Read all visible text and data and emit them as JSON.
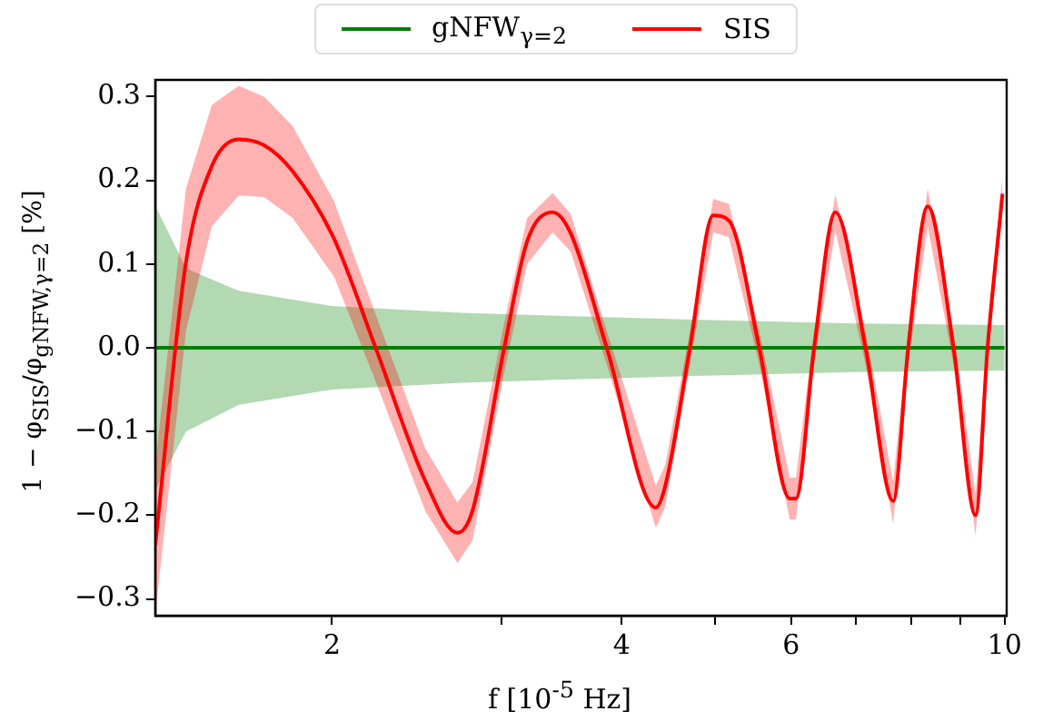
{
  "chart_data": {
    "type": "line",
    "xlabel": "f [10$^{-5}$ Hz]",
    "ylabel": "1 − φ$_{SIS}$/φ$_{gNFW,γ=2}$ [%]",
    "log": "x",
    "xlim": [
      1.31,
      10.05
    ],
    "xticks": [
      2,
      {
        "value": 3,
        "label": null
      },
      4,
      {
        "value": 5,
        "label": null
      },
      6,
      {
        "value": 7,
        "label": null
      },
      {
        "value": 8,
        "label": null
      },
      {
        "value": 9,
        "label": null
      },
      10
    ],
    "ylim": [
      -0.32,
      0.32
    ],
    "yticks": [
      -0.3,
      -0.2,
      -0.1,
      {
        "value": 0,
        "label": "0.0"
      },
      0.1,
      0.2,
      0.3
    ],
    "grid": false,
    "legend": "top",
    "marker": "none",
    "line_style": "solid",
    "series": [
      {
        "name": "gNFW$_{γ=2}$",
        "color": "#008000",
        "x": [
          1.31,
          1.41,
          1.6,
          2,
          2.7,
          3.5,
          5,
          7,
          10
        ],
        "values": [
          0,
          0,
          0,
          0,
          0,
          0,
          0,
          0,
          0
        ],
        "lower": [
          -0.17,
          -0.1,
          -0.068,
          -0.05,
          -0.042,
          -0.038,
          -0.033,
          -0.029,
          -0.027
        ],
        "upper": [
          0.17,
          0.095,
          0.068,
          0.05,
          0.042,
          0.038,
          0.033,
          0.029,
          0.027
        ]
      },
      {
        "name": "SIS",
        "color": "#ff0000",
        "x": [
          1.31,
          1.41,
          1.5,
          1.6,
          1.7,
          1.82,
          2.01,
          2.22,
          2.5,
          2.7,
          2.8,
          3.02,
          3.19,
          3.39,
          3.54,
          3.86,
          4.34,
          4.44,
          4.71,
          4.98,
          5.17,
          5.56,
          5.98,
          6.07,
          6.34,
          6.67,
          7.17,
          7.66,
          7.94,
          8.32,
          8.85,
          9.33,
          9.6,
          9.95
        ],
        "values": [
          -0.236,
          0.102,
          0.217,
          0.249,
          0.242,
          0.211,
          0.13,
          0.0,
          -0.159,
          -0.221,
          -0.194,
          0.0,
          0.127,
          0.162,
          0.137,
          0.0,
          -0.191,
          -0.165,
          0.0,
          0.158,
          0.152,
          0.0,
          -0.18,
          -0.18,
          0.0,
          0.162,
          0.0,
          -0.183,
          0.0,
          0.169,
          0.0,
          -0.2,
          0.0,
          0.184
        ],
        "lower": [
          -0.32,
          0.02,
          0.145,
          0.182,
          0.18,
          0.155,
          0.085,
          -0.04,
          -0.195,
          -0.257,
          -0.23,
          -0.03,
          0.1,
          0.138,
          0.115,
          -0.02,
          -0.215,
          -0.19,
          -0.02,
          0.138,
          0.132,
          -0.02,
          -0.205,
          -0.205,
          -0.02,
          0.14,
          -0.02,
          -0.21,
          -0.02,
          0.145,
          -0.02,
          -0.225,
          -0.02,
          0.16
        ],
        "upper": [
          -0.14,
          0.19,
          0.29,
          0.313,
          0.3,
          0.265,
          0.175,
          0.04,
          -0.12,
          -0.185,
          -0.16,
          0.03,
          0.155,
          0.185,
          0.16,
          0.02,
          -0.165,
          -0.14,
          0.02,
          0.178,
          0.172,
          0.02,
          -0.155,
          -0.155,
          0.02,
          0.183,
          0.02,
          -0.16,
          0.02,
          0.19,
          0.02,
          -0.175,
          0.02,
          0.205
        ]
      }
    ]
  }
}
